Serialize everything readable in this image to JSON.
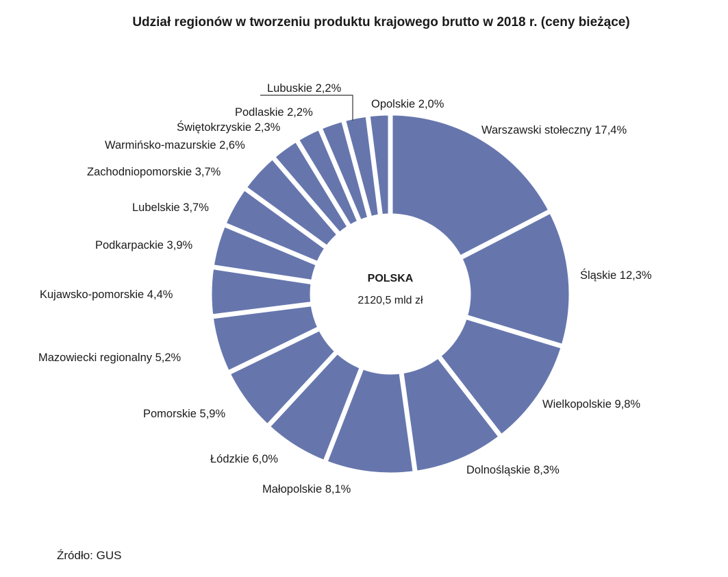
{
  "chart_data": {
    "type": "pie",
    "variant": "donut",
    "title": "Udział regionów w tworzeniu produktu krajowego brutto w 2018 r. (ceny bieżące)",
    "categories": [
      "Warszawski stołeczny",
      "Śląskie",
      "Wielkopolskie",
      "Dolnośląskie",
      "Małopolskie",
      "Łódzkie",
      "Pomorskie",
      "Mazowiecki regionalny",
      "Kujawsko-pomorskie",
      "Podkarpackie",
      "Lubelskie",
      "Zachodniopomorskie",
      "Warmińsko-mazurskie",
      "Świętokrzyskie",
      "Podlaskie",
      "Lubuskie",
      "Opolskie"
    ],
    "values": [
      17.4,
      12.3,
      9.8,
      8.3,
      8.1,
      6.0,
      5.9,
      5.2,
      4.4,
      3.9,
      3.7,
      3.7,
      2.6,
      2.3,
      2.2,
      2.2,
      2.0
    ],
    "labels": [
      "Warszawski stołeczny 17,4%",
      "Śląskie 12,3%",
      "Wielkopolskie 9,8%",
      "Dolnośląskie 8,3%",
      "Małopolskie 8,1%",
      "Łódzkie 6,0%",
      "Pomorskie 5,9%",
      "Mazowiecki regionalny 5,2%",
      "Kujawsko-pomorskie 4,4%",
      "Podkarpackie 3,9%",
      "Lubelskie 3,7%",
      "Zachodniopomorskie 3,7%",
      "Warmińsko-mazurskie 2,6%",
      "Świętokrzyskie 2,3%",
      "Podlaskie 2,2%",
      "Lubuskie 2,2%",
      "Opolskie 2,0%"
    ],
    "unit": "%",
    "color": "#6676ad",
    "center": {
      "title": "POLSKA",
      "total": "2120,5 mld zł"
    }
  },
  "source": "Źródło: GUS"
}
